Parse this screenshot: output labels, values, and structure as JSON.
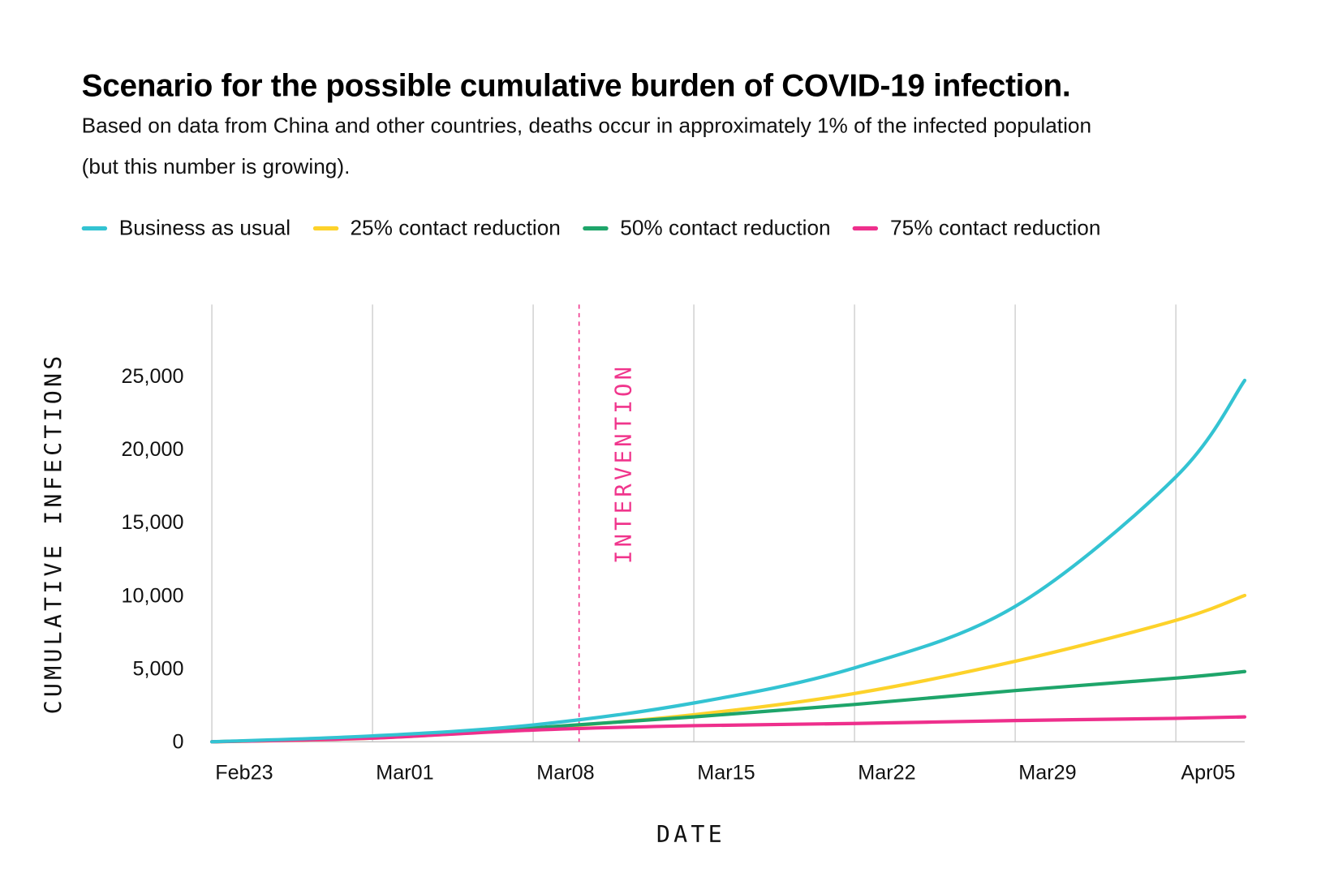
{
  "title": "Scenario for the possible cumulative burden of COVID-19 infection.",
  "subtitle": "Based on data from China and other countries, deaths occur in approximately 1% of the infected population (but this number is growing).",
  "chart_data": {
    "type": "line",
    "title": "Scenario for the possible cumulative burden of COVID-19 infection.",
    "xlabel": "DATE",
    "ylabel": "CUMULATIVE INFECTIONS",
    "x_ticks": [
      "Feb23",
      "Mar01",
      "Mar08",
      "Mar15",
      "Mar22",
      "Mar29",
      "Apr05"
    ],
    "y_ticks": [
      0,
      5000,
      10000,
      15000,
      20000,
      25000
    ],
    "y_tick_labels": [
      "0",
      "5,000",
      "10,000",
      "15,000",
      "20,000",
      "25,000"
    ],
    "xlim": [
      "Feb23",
      "Apr08"
    ],
    "ylim": [
      0,
      29500
    ],
    "grid": "vertical",
    "legend_position": "top",
    "annotation": {
      "label": "INTERVENTION",
      "x": "Mar10",
      "color": "#f0358c"
    },
    "x": [
      "Feb23",
      "Mar01",
      "Mar08",
      "Mar15",
      "Mar22",
      "Mar29",
      "Apr05",
      "Apr08"
    ],
    "series": [
      {
        "name": "Business as usual",
        "color": "#33c3d2",
        "values": [
          0,
          400,
          1150,
          2650,
          5050,
          9250,
          18100,
          24700
        ]
      },
      {
        "name": "25% contact reduction",
        "color": "#fdd22a",
        "values": [
          0,
          250,
          900,
          1850,
          3300,
          5500,
          8300,
          10000
        ]
      },
      {
        "name": "50% contact reduction",
        "color": "#1ea56a",
        "values": [
          0,
          300,
          950,
          1700,
          2550,
          3500,
          4350,
          4800
        ]
      },
      {
        "name": "75% contact reduction",
        "color": "#ee2f8c",
        "values": [
          0,
          250,
          800,
          1100,
          1250,
          1450,
          1600,
          1700
        ]
      }
    ]
  }
}
